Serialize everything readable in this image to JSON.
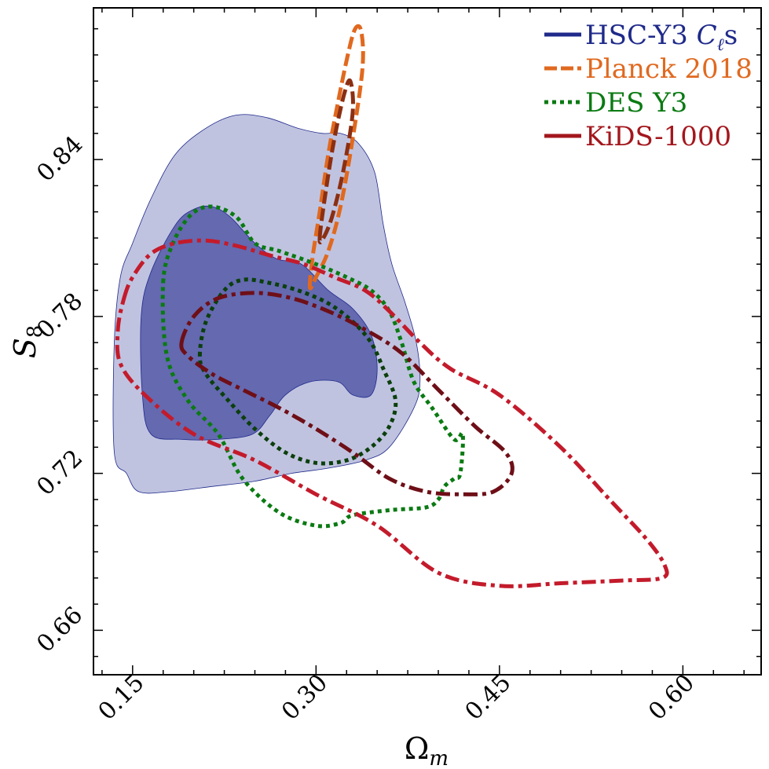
{
  "chart_data": {
    "type": "contour",
    "xlabel": "Ωm",
    "ylabel": "S8",
    "xlim": [
      0.118,
      0.664
    ],
    "ylim": [
      0.643,
      0.898
    ],
    "xticks": [
      "0.15",
      "0.30",
      "0.45",
      "0.60"
    ],
    "yticks": [
      "0.66",
      "0.72",
      "0.78",
      "0.84"
    ],
    "xtick_values": [
      0.15,
      0.3,
      0.45,
      0.6
    ],
    "ytick_values": [
      0.66,
      0.72,
      0.78,
      0.84
    ],
    "legend_position": "top-right",
    "series": [
      {
        "name": "HSC-Y3 C_ℓs",
        "label_parts": [
          "HSC-Y3 ",
          "C",
          "ℓ",
          "s"
        ],
        "style": "solid-filled",
        "color": "#1f2a8a",
        "fill_outer": "#c0c3e0",
        "fill_inner": "#6469b0",
        "contours": [
          [
            [
              0.135,
              0.728
            ],
            [
              0.135,
              0.77
            ],
            [
              0.14,
              0.795
            ],
            [
              0.15,
              0.808
            ],
            [
              0.165,
              0.825
            ],
            [
              0.185,
              0.842
            ],
            [
              0.21,
              0.852
            ],
            [
              0.235,
              0.857
            ],
            [
              0.26,
              0.856
            ],
            [
              0.285,
              0.852
            ],
            [
              0.305,
              0.85
            ],
            [
              0.32,
              0.85
            ],
            [
              0.335,
              0.846
            ],
            [
              0.348,
              0.835
            ],
            [
              0.355,
              0.815
            ],
            [
              0.362,
              0.8
            ],
            [
              0.373,
              0.785
            ],
            [
              0.382,
              0.77
            ],
            [
              0.385,
              0.755
            ],
            [
              0.38,
              0.745
            ],
            [
              0.36,
              0.73
            ],
            [
              0.34,
              0.725
            ],
            [
              0.31,
              0.722
            ],
            [
              0.28,
              0.72
            ],
            [
              0.25,
              0.717
            ],
            [
              0.215,
              0.715
            ],
            [
              0.18,
              0.713
            ],
            [
              0.155,
              0.713
            ],
            [
              0.145,
              0.72
            ],
            [
              0.135,
              0.728
            ]
          ],
          [
            [
              0.158,
              0.75
            ],
            [
              0.157,
              0.78
            ],
            [
              0.165,
              0.797
            ],
            [
              0.185,
              0.815
            ],
            [
              0.2,
              0.821
            ],
            [
              0.215,
              0.822
            ],
            [
              0.23,
              0.818
            ],
            [
              0.25,
              0.808
            ],
            [
              0.268,
              0.802
            ],
            [
              0.288,
              0.8
            ],
            [
              0.31,
              0.79
            ],
            [
              0.33,
              0.783
            ],
            [
              0.345,
              0.773
            ],
            [
              0.35,
              0.76
            ],
            [
              0.345,
              0.75
            ],
            [
              0.33,
              0.75
            ],
            [
              0.318,
              0.755
            ],
            [
              0.295,
              0.755
            ],
            [
              0.275,
              0.75
            ],
            [
              0.262,
              0.742
            ],
            [
              0.248,
              0.735
            ],
            [
              0.22,
              0.733
            ],
            [
              0.19,
              0.733
            ],
            [
              0.165,
              0.735
            ],
            [
              0.158,
              0.75
            ]
          ]
        ]
      },
      {
        "name": "Planck 2018",
        "style": "dashed",
        "color": "#e0691f",
        "color_inner": "#8b2f12",
        "contours": [
          [
            [
              0.295,
              0.791
            ],
            [
              0.297,
              0.802
            ],
            [
              0.303,
              0.82
            ],
            [
              0.31,
              0.842
            ],
            [
              0.318,
              0.862
            ],
            [
              0.326,
              0.88
            ],
            [
              0.332,
              0.89
            ],
            [
              0.337,
              0.889
            ],
            [
              0.338,
              0.875
            ],
            [
              0.33,
              0.848
            ],
            [
              0.32,
              0.822
            ],
            [
              0.31,
              0.805
            ],
            [
              0.3,
              0.795
            ],
            [
              0.295,
              0.791
            ]
          ],
          [
            [
              0.303,
              0.81
            ],
            [
              0.308,
              0.828
            ],
            [
              0.315,
              0.848
            ],
            [
              0.323,
              0.865
            ],
            [
              0.328,
              0.87
            ],
            [
              0.33,
              0.858
            ],
            [
              0.322,
              0.835
            ],
            [
              0.313,
              0.818
            ],
            [
              0.306,
              0.81
            ],
            [
              0.303,
              0.81
            ]
          ]
        ]
      },
      {
        "name": "DES Y3",
        "style": "dotted",
        "color": "#0a7a12",
        "color_inner": "#0b3f0c",
        "contours": [
          [
            [
              0.175,
              0.793
            ],
            [
              0.183,
              0.808
            ],
            [
              0.198,
              0.819
            ],
            [
              0.215,
              0.822
            ],
            [
              0.235,
              0.818
            ],
            [
              0.25,
              0.808
            ],
            [
              0.27,
              0.805
            ],
            [
              0.3,
              0.8
            ],
            [
              0.325,
              0.795
            ],
            [
              0.345,
              0.79
            ],
            [
              0.36,
              0.782
            ],
            [
              0.37,
              0.77
            ],
            [
              0.38,
              0.755
            ],
            [
              0.395,
              0.745
            ],
            [
              0.413,
              0.733
            ],
            [
              0.42,
              0.735
            ],
            [
              0.418,
              0.72
            ],
            [
              0.413,
              0.718
            ],
            [
              0.405,
              0.715
            ],
            [
              0.4,
              0.71
            ],
            [
              0.39,
              0.707
            ],
            [
              0.362,
              0.706
            ],
            [
              0.33,
              0.704
            ],
            [
              0.32,
              0.701
            ],
            [
              0.3,
              0.7
            ],
            [
              0.27,
              0.705
            ],
            [
              0.24,
              0.718
            ],
            [
              0.22,
              0.735
            ],
            [
              0.195,
              0.748
            ],
            [
              0.178,
              0.765
            ],
            [
              0.175,
              0.793
            ]
          ],
          [
            [
              0.205,
              0.765
            ],
            [
              0.21,
              0.778
            ],
            [
              0.225,
              0.79
            ],
            [
              0.24,
              0.794
            ],
            [
              0.26,
              0.793
            ],
            [
              0.285,
              0.79
            ],
            [
              0.31,
              0.785
            ],
            [
              0.33,
              0.778
            ],
            [
              0.345,
              0.77
            ],
            [
              0.355,
              0.76
            ],
            [
              0.365,
              0.748
            ],
            [
              0.36,
              0.738
            ],
            [
              0.345,
              0.73
            ],
            [
              0.325,
              0.725
            ],
            [
              0.3,
              0.724
            ],
            [
              0.275,
              0.728
            ],
            [
              0.25,
              0.737
            ],
            [
              0.228,
              0.748
            ],
            [
              0.21,
              0.758
            ],
            [
              0.205,
              0.765
            ]
          ]
        ]
      },
      {
        "name": "KiDS-1000",
        "style": "dashdot",
        "color": "#c31b2b",
        "color_inner": "#6e0f17",
        "contours": [
          [
            [
              0.143,
              0.787
            ],
            [
              0.15,
              0.795
            ],
            [
              0.165,
              0.804
            ],
            [
              0.185,
              0.808
            ],
            [
              0.21,
              0.809
            ],
            [
              0.235,
              0.807
            ],
            [
              0.265,
              0.803
            ],
            [
              0.29,
              0.8
            ],
            [
              0.315,
              0.795
            ],
            [
              0.34,
              0.79
            ],
            [
              0.36,
              0.782
            ],
            [
              0.385,
              0.77
            ],
            [
              0.41,
              0.76
            ],
            [
              0.45,
              0.75
            ],
            [
              0.5,
              0.73
            ],
            [
              0.54,
              0.71
            ],
            [
              0.57,
              0.695
            ],
            [
              0.585,
              0.685
            ],
            [
              0.583,
              0.68
            ],
            [
              0.55,
              0.679
            ],
            [
              0.5,
              0.678
            ],
            [
              0.45,
              0.677
            ],
            [
              0.4,
              0.682
            ],
            [
              0.35,
              0.7
            ],
            [
              0.3,
              0.712
            ],
            [
              0.25,
              0.725
            ],
            [
              0.2,
              0.735
            ],
            [
              0.16,
              0.75
            ],
            [
              0.14,
              0.762
            ],
            [
              0.138,
              0.775
            ],
            [
              0.143,
              0.787
            ]
          ],
          [
            [
              0.19,
              0.77
            ],
            [
              0.2,
              0.78
            ],
            [
              0.22,
              0.787
            ],
            [
              0.25,
              0.789
            ],
            [
              0.28,
              0.787
            ],
            [
              0.31,
              0.782
            ],
            [
              0.34,
              0.775
            ],
            [
              0.37,
              0.766
            ],
            [
              0.4,
              0.752
            ],
            [
              0.43,
              0.738
            ],
            [
              0.455,
              0.728
            ],
            [
              0.46,
              0.72
            ],
            [
              0.445,
              0.713
            ],
            [
              0.42,
              0.712
            ],
            [
              0.39,
              0.713
            ],
            [
              0.36,
              0.718
            ],
            [
              0.33,
              0.728
            ],
            [
              0.3,
              0.737
            ],
            [
              0.27,
              0.745
            ],
            [
              0.24,
              0.752
            ],
            [
              0.215,
              0.758
            ],
            [
              0.195,
              0.765
            ],
            [
              0.19,
              0.77
            ]
          ]
        ]
      }
    ]
  },
  "legend": {
    "hsc_pre": "HSC-Y3 ",
    "hsc_c": "C",
    "hsc_sub": "ℓ",
    "hsc_post": "s",
    "planck": "Planck 2018",
    "des": "DES Y3",
    "kids": "KiDS-1000"
  },
  "axes": {
    "x_main": "Ω",
    "x_sub": "m",
    "y_main": "S",
    "y_sub": "8"
  }
}
